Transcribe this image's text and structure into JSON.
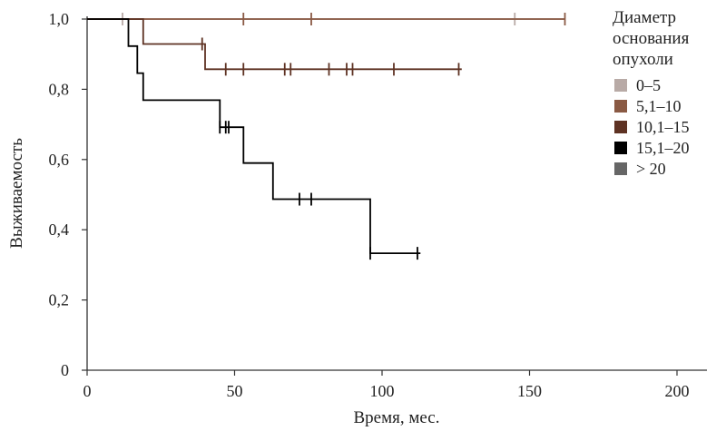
{
  "chart_data": {
    "type": "line",
    "step": true,
    "xlabel": "Время, мес.",
    "ylabel": "Выживаемость",
    "xlim": [
      0,
      210
    ],
    "ylim": [
      0,
      1.0
    ],
    "x_ticks": [
      0,
      50,
      100,
      150,
      200
    ],
    "x_tick_labels": [
      "0",
      "50",
      "100",
      "150",
      "200"
    ],
    "y_ticks": [
      0,
      0.2,
      0.4,
      0.6,
      0.8,
      1.0
    ],
    "y_tick_labels": [
      "0",
      "0,2",
      "0,4",
      "0,6",
      "0,8",
      "1,0"
    ],
    "grid": false,
    "legend": {
      "title_lines": [
        "Диаметр",
        "основания",
        "опухоли"
      ],
      "position": "right"
    },
    "series": [
      {
        "name": "0–5",
        "color": "#b8aaa6",
        "steps": [
          [
            0,
            1.0
          ],
          [
            162,
            1.0
          ]
        ],
        "censored": [
          [
            12,
            1.0
          ],
          [
            145,
            1.0
          ]
        ]
      },
      {
        "name": "5,1–10",
        "color": "#8a5a44",
        "steps": [
          [
            0,
            1.0
          ],
          [
            162,
            1.0
          ]
        ],
        "censored": [
          [
            53,
            1.0
          ],
          [
            76,
            1.0
          ],
          [
            162,
            1.0
          ]
        ]
      },
      {
        "name": "10,1–15",
        "color": "#5e3223",
        "steps": [
          [
            0,
            1.0
          ],
          [
            19,
            1.0
          ],
          [
            19,
            0.929
          ],
          [
            40,
            0.929
          ],
          [
            40,
            0.857
          ],
          [
            127,
            0.857
          ]
        ],
        "censored": [
          [
            39,
            0.929
          ],
          [
            47,
            0.857
          ],
          [
            53,
            0.857
          ],
          [
            67,
            0.857
          ],
          [
            69,
            0.857
          ],
          [
            82,
            0.857
          ],
          [
            88,
            0.857
          ],
          [
            90,
            0.857
          ],
          [
            104,
            0.857
          ],
          [
            126,
            0.857
          ]
        ]
      },
      {
        "name": "15,1–20",
        "color": "#000000",
        "steps": [
          [
            0,
            1.0
          ],
          [
            14,
            1.0
          ],
          [
            14,
            0.923
          ],
          [
            17,
            0.923
          ],
          [
            17,
            0.846
          ],
          [
            19,
            0.846
          ],
          [
            19,
            0.769
          ],
          [
            45,
            0.769
          ],
          [
            45,
            0.692
          ],
          [
            53,
            0.692
          ],
          [
            53,
            0.59
          ],
          [
            63,
            0.59
          ],
          [
            63,
            0.487
          ],
          [
            96,
            0.487
          ],
          [
            96,
            0.333
          ],
          [
            113,
            0.333
          ]
        ],
        "censored": [
          [
            45,
            0.692
          ],
          [
            47,
            0.692
          ],
          [
            48,
            0.692
          ],
          [
            72,
            0.487
          ],
          [
            76,
            0.487
          ],
          [
            96,
            0.333
          ],
          [
            112,
            0.333
          ]
        ]
      },
      {
        "name": "> 20",
        "color": "#666666",
        "steps": [],
        "censored": []
      }
    ]
  }
}
